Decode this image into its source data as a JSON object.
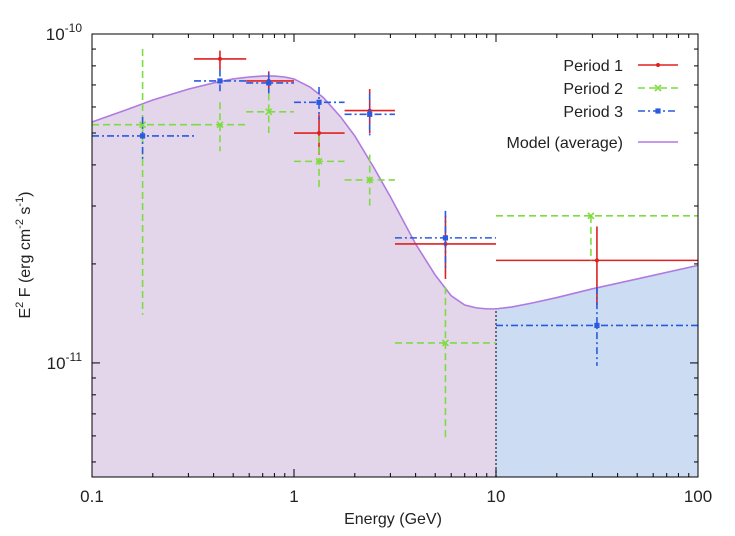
{
  "chart_data": {
    "type": "scatter",
    "title": "",
    "xlabel": "Energy (GeV)",
    "ylabel": {
      "base": "E",
      "sup1": "2",
      "mid": " F (erg cm",
      "sup2": "-2",
      "mid2": " s",
      "sup3": "-1",
      "end": ")"
    },
    "xscale": "log",
    "yscale": "log",
    "xlim": [
      0.1,
      100
    ],
    "ylim": [
      4.5e-12,
      1e-10
    ],
    "x_ticks": [
      {
        "value": 0.1,
        "label": "0.1"
      },
      {
        "value": 1,
        "label": "1"
      },
      {
        "value": 10,
        "label": "10"
      },
      {
        "value": 100,
        "label": "100"
      }
    ],
    "y_ticks": [
      {
        "value": 1e-11,
        "base": "10",
        "exp": "-11"
      },
      {
        "value": 1e-10,
        "base": "10",
        "exp": "-10"
      }
    ],
    "legend_position": "top-right",
    "series": [
      {
        "name": "Period 1",
        "color": "#e02020",
        "dash": "solid",
        "points": [
          {
            "x": 0.43,
            "y": 8.4e-11,
            "xlo": 0.32,
            "xhi": 0.58,
            "ylo": 7.8e-11,
            "yhi": 8.9e-11
          },
          {
            "x": 0.75,
            "y": 7.2e-11,
            "xlo": 0.58,
            "xhi": 1.0,
            "ylo": 6.7e-11,
            "yhi": 7.7e-11
          },
          {
            "x": 1.33,
            "y": 5e-11,
            "xlo": 1.0,
            "xhi": 1.78,
            "ylo": 4.3e-11,
            "yhi": 5.7e-11
          },
          {
            "x": 2.37,
            "y": 5.85e-11,
            "xlo": 1.78,
            "xhi": 3.16,
            "ylo": 5e-11,
            "yhi": 6.8e-11
          },
          {
            "x": 5.62,
            "y": 2.3e-11,
            "xlo": 3.16,
            "xhi": 10,
            "ylo": 1.8e-11,
            "yhi": 2.8e-11
          },
          {
            "x": 31.6,
            "y": 2.05e-11,
            "xlo": 10,
            "xhi": 100,
            "ylo": 1.5e-11,
            "yhi": 2.6e-11
          }
        ]
      },
      {
        "name": "Period 2",
        "color": "#7edc40",
        "dash": "dash",
        "points": [
          {
            "x": 0.178,
            "y": 5.3e-11,
            "xlo": 0.1,
            "xhi": 0.32,
            "ylo": 1.4e-11,
            "yhi": 9e-11
          },
          {
            "x": 0.43,
            "y": 5.3e-11,
            "xlo": 0.32,
            "xhi": 0.58,
            "ylo": 4.4e-11,
            "yhi": 6.2e-11
          },
          {
            "x": 0.75,
            "y": 5.8e-11,
            "xlo": 0.58,
            "xhi": 1.0,
            "ylo": 5e-11,
            "yhi": 6.6e-11
          },
          {
            "x": 1.33,
            "y": 4.1e-11,
            "xlo": 1.0,
            "xhi": 1.78,
            "ylo": 3.4e-11,
            "yhi": 4.9e-11
          },
          {
            "x": 2.37,
            "y": 3.6e-11,
            "xlo": 1.78,
            "xhi": 3.16,
            "ylo": 3e-11,
            "yhi": 4.3e-11
          },
          {
            "x": 5.62,
            "y": 1.15e-11,
            "xlo": 3.16,
            "xhi": 10,
            "ylo": 5.8e-12,
            "yhi": 1.7e-11
          },
          {
            "x": 29.5,
            "y": 2.8e-11,
            "xlo": 10,
            "xhi": 100,
            "ylo": 2.05e-11,
            "yhi": 2.8e-11
          }
        ]
      },
      {
        "name": "Period 3",
        "color": "#2a5ae0",
        "dash": "dashdot",
        "points": [
          {
            "x": 0.178,
            "y": 4.9e-11,
            "xlo": 0.1,
            "xhi": 0.32,
            "ylo": 4.1e-11,
            "yhi": 5.6e-11
          },
          {
            "x": 0.43,
            "y": 7.2e-11,
            "xlo": 0.32,
            "xhi": 0.58,
            "ylo": 6.7e-11,
            "yhi": 7.8e-11
          },
          {
            "x": 0.75,
            "y": 7.1e-11,
            "xlo": 0.58,
            "xhi": 1.0,
            "ylo": 6.6e-11,
            "yhi": 7.6e-11
          },
          {
            "x": 1.33,
            "y": 6.2e-11,
            "xlo": 1.0,
            "xhi": 1.78,
            "ylo": 5.5e-11,
            "yhi": 6.9e-11
          },
          {
            "x": 2.37,
            "y": 5.7e-11,
            "xlo": 1.78,
            "xhi": 3.16,
            "ylo": 4.9e-11,
            "yhi": 6.6e-11
          },
          {
            "x": 5.62,
            "y": 2.4e-11,
            "xlo": 3.16,
            "xhi": 10,
            "ylo": 1.9e-11,
            "yhi": 2.9e-11
          },
          {
            "x": 31.6,
            "y": 1.3e-11,
            "xlo": 10,
            "xhi": 100,
            "ylo": 9.8e-12,
            "yhi": 1.7e-11
          }
        ]
      }
    ],
    "model": {
      "name": "Model (average)",
      "color": "#b07ae0",
      "fill_low": "#e3d6eb",
      "fill_high": "#cbdcf3",
      "fill_split_x": 10,
      "x": [
        0.1,
        0.15,
        0.2,
        0.3,
        0.4,
        0.5,
        0.6,
        0.7,
        0.8,
        0.9,
        1.0,
        1.2,
        1.4,
        1.7,
        2.0,
        2.5,
        3.0,
        4.0,
        5.0,
        6.0,
        7.0,
        8.0,
        9.0,
        10,
        12,
        15,
        20,
        30,
        50,
        100
      ],
      "y": [
        5.4e-11,
        5.9e-11,
        6.3e-11,
        6.8e-11,
        7.1e-11,
        7.3e-11,
        7.4e-11,
        7.45e-11,
        7.45e-11,
        7.4e-11,
        7.3e-11,
        6.9e-11,
        6.4e-11,
        5.6e-11,
        4.9e-11,
        3.9e-11,
        3.2e-11,
        2.3e-11,
        1.85e-11,
        1.6e-11,
        1.5e-11,
        1.47e-11,
        1.46e-11,
        1.46e-11,
        1.48e-11,
        1.52e-11,
        1.58e-11,
        1.68e-11,
        1.8e-11,
        1.98e-11
      ]
    }
  }
}
